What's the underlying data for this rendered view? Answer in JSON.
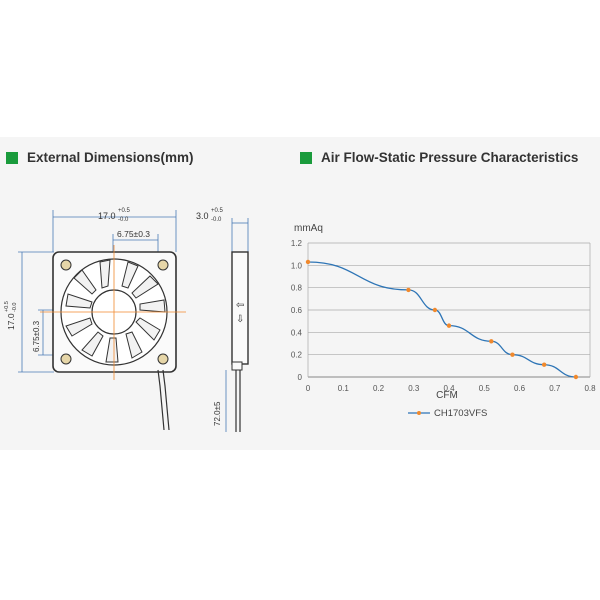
{
  "headings": {
    "dimensions": "External Dimensions(mm)",
    "characteristics": "Air Flow-Static Pressure Characteristics"
  },
  "colors": {
    "heading_marker": "#1a9b3c",
    "series_line": "#2e75b6",
    "series_marker": "#f0892d",
    "dimension_line": "#4a7ab5",
    "center_line": "#f0892d"
  },
  "dimensions": {
    "width_main": "17.0",
    "width_tol_plus": "+0.5",
    "width_tol_minus": "-0.0",
    "hole_spacing_h": "6.75±0.3",
    "thickness_main": "3.0",
    "thickness_tol_plus": "+0.5",
    "thickness_tol_minus": "-0.0",
    "height_main": "17.0",
    "height_tol_plus": "+0.5",
    "height_tol_minus": "-0.0",
    "hole_spacing_v": "6.75±0.3",
    "lead_length": "72.0±5"
  },
  "chart_data": {
    "type": "line",
    "title": "",
    "xlabel": "CFM",
    "ylabel": "mmAq",
    "xlim": [
      0,
      0.8
    ],
    "ylim": [
      0,
      1.2
    ],
    "x_ticks": [
      "0",
      "0.1",
      "0.2",
      "0.3",
      "0.4",
      "0.5",
      "0.6",
      "0.7",
      "0.8"
    ],
    "y_ticks": [
      "0",
      "0.2",
      "0.4",
      "0.6",
      "0.8",
      "1.0",
      "1.2"
    ],
    "grid": "horizontal",
    "legend": "bottom-center",
    "series": [
      {
        "name": "CH1703VFS",
        "x": [
          0.0,
          0.285,
          0.36,
          0.4,
          0.52,
          0.58,
          0.67,
          0.76
        ],
        "y": [
          1.03,
          0.78,
          0.6,
          0.46,
          0.32,
          0.2,
          0.11,
          0.0
        ]
      }
    ]
  }
}
